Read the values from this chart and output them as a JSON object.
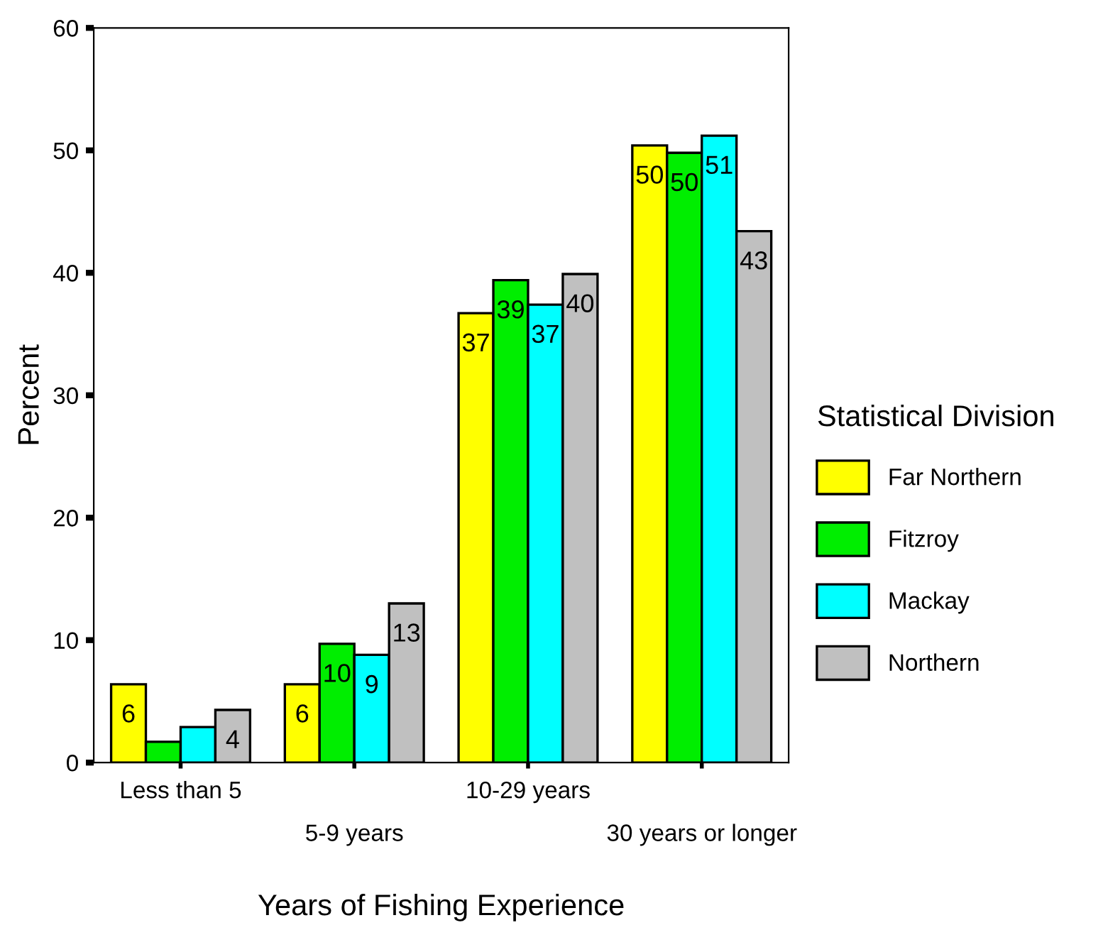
{
  "chart_data": {
    "type": "bar",
    "xlabel": "Years of Fishing Experience",
    "ylabel": "Percent",
    "legend_title": "Statistical Division",
    "categories": [
      "Less than 5",
      "5-9 years",
      "10-29 years",
      "30 years or longer"
    ],
    "series": [
      {
        "name": "Far Northern",
        "color": "#ffff00",
        "values": [
          6.4,
          6.4,
          36.7,
          50.4
        ],
        "value_labels": [
          "6",
          "6",
          "37",
          "50"
        ]
      },
      {
        "name": "Fitzroy",
        "color": "#00ee00",
        "values": [
          1.7,
          9.7,
          39.4,
          49.8
        ],
        "value_labels": [
          null,
          "10",
          "39",
          "50"
        ]
      },
      {
        "name": "Mackay",
        "color": "#00ffff",
        "values": [
          2.9,
          8.8,
          37.4,
          51.2
        ],
        "value_labels": [
          null,
          "9",
          "37",
          "51"
        ]
      },
      {
        "name": "Northern",
        "color": "#c0c0c0",
        "values": [
          4.3,
          13.0,
          39.9,
          43.4
        ],
        "value_labels": [
          "4",
          "13",
          "40",
          "43"
        ]
      }
    ],
    "ylim": [
      0,
      60
    ],
    "yticks": [
      0,
      10,
      20,
      30,
      40,
      50,
      60
    ],
    "grid": false,
    "legend": "right"
  }
}
